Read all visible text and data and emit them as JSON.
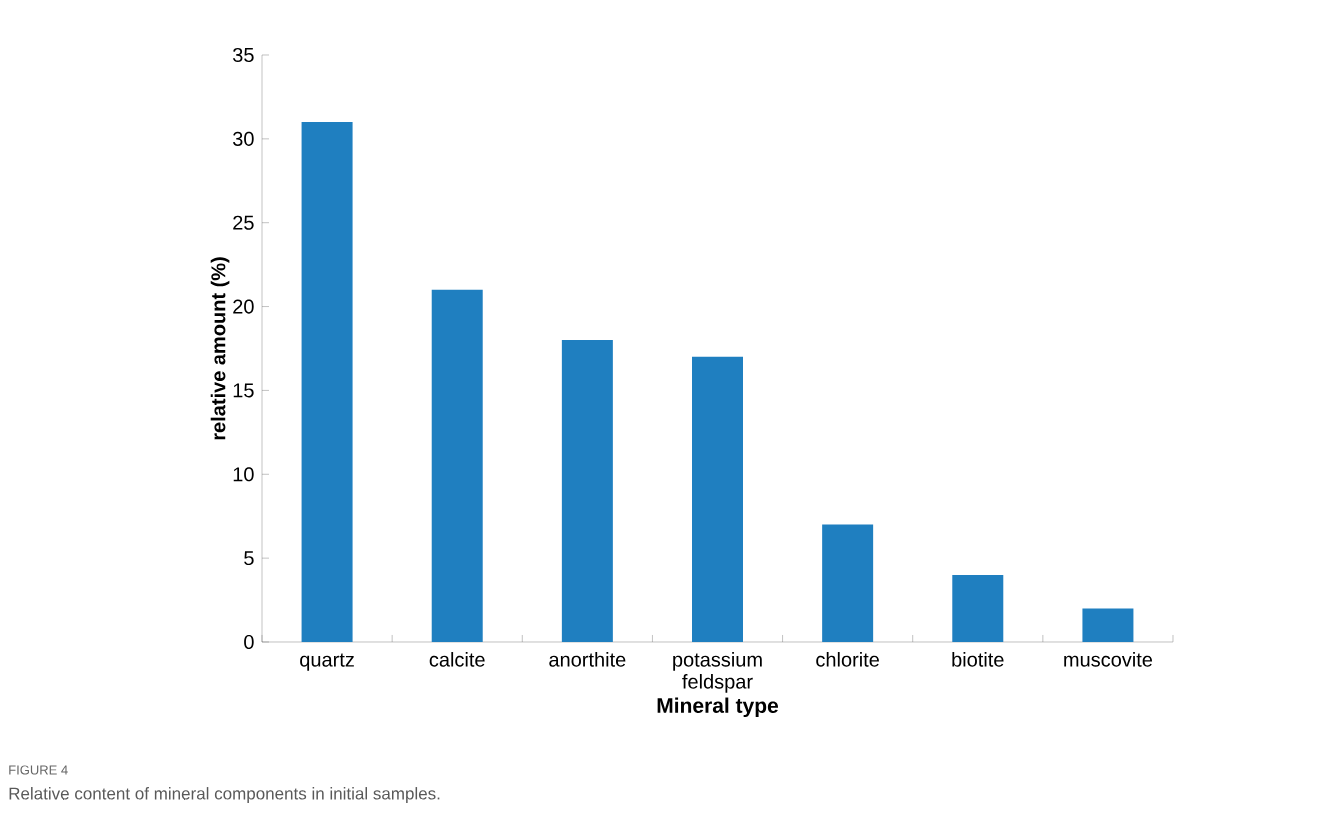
{
  "chart_data": {
    "type": "bar",
    "xlabel": "Mineral type",
    "ylabel": "relative amount (%)",
    "categories": [
      "quartz",
      "calcite",
      "anorthite",
      "potassium feldspar",
      "chlorite",
      "biotite",
      "muscovite"
    ],
    "values": [
      31,
      21,
      18,
      17,
      7,
      4,
      2
    ],
    "color": "#1f7fc0",
    "ylim": [
      0,
      35
    ],
    "yticks": [
      0,
      5,
      10,
      15,
      20,
      25,
      30,
      35
    ],
    "grid": false,
    "annotations": [
      "FIGURE 4",
      "Relative content of mineral components in initial samples."
    ]
  }
}
